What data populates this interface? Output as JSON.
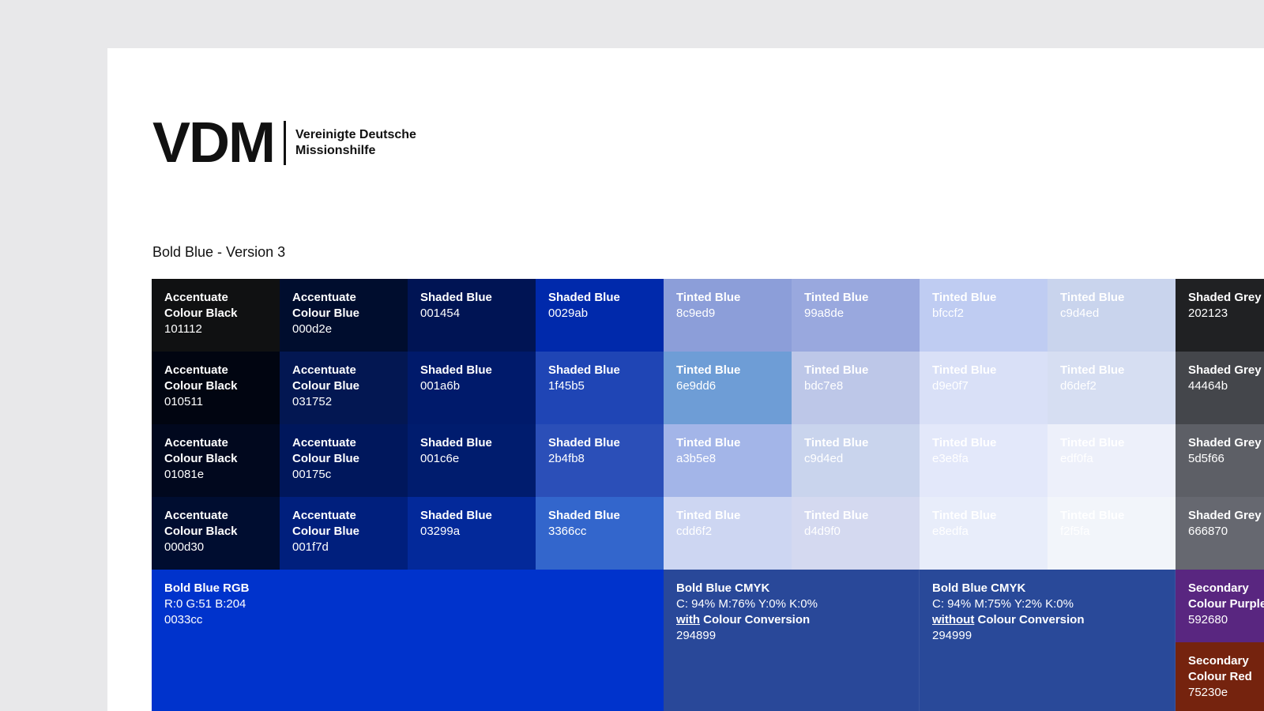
{
  "logo": {
    "mark": "VDM",
    "line1": "Vereinigte Deutsche",
    "line2": "Missionshilfe"
  },
  "title": "Bold Blue - Version 3",
  "rows": [
    [
      {
        "name": "Accentuate Colour Black",
        "code": "101112",
        "bg": "#101112",
        "fg": "#ffffff"
      },
      {
        "name": "Accentuate Colour Blue",
        "code": "000d2e",
        "bg": "#000d2e",
        "fg": "#ffffff"
      },
      {
        "name": "Shaded Blue",
        "code": "001454",
        "bg": "#001454",
        "fg": "#ffffff"
      },
      {
        "name": "Shaded Blue",
        "code": "0029ab",
        "bg": "#0029ab",
        "fg": "#ffffff"
      },
      {
        "name": "Tinted Blue",
        "code": "8c9ed9",
        "bg": "#8c9ed9",
        "fg": "#ffffff"
      },
      {
        "name": "Tinted Blue",
        "code": "99a8de",
        "bg": "#99a8de",
        "fg": "#ffffff"
      },
      {
        "name": "Tinted Blue",
        "code": "bfccf2",
        "bg": "#bfccf2",
        "fg": "#ffffff"
      },
      {
        "name": "Tinted Blue",
        "code": "c9d4ed",
        "bg": "#c9d4ed",
        "fg": "#ffffff"
      },
      {
        "name": "Shaded Grey",
        "code": "202123",
        "bg": "#202123",
        "fg": "#ffffff"
      }
    ],
    [
      {
        "name": "Accentuate Colour Black",
        "code": "010511",
        "bg": "#010511",
        "fg": "#ffffff"
      },
      {
        "name": "Accentuate Colour Blue",
        "code": "031752",
        "bg": "#031752",
        "fg": "#ffffff"
      },
      {
        "name": "Shaded Blue",
        "code": "001a6b",
        "bg": "#001a6b",
        "fg": "#ffffff"
      },
      {
        "name": "Shaded Blue",
        "code": "1f45b5",
        "bg": "#1f45b5",
        "fg": "#ffffff"
      },
      {
        "name": "Tinted Blue",
        "code": "6e9dd6",
        "bg": "#6e9dd6",
        "fg": "#ffffff"
      },
      {
        "name": "Tinted Blue",
        "code": "bdc7e8",
        "bg": "#bdc7e8",
        "fg": "#ffffff"
      },
      {
        "name": "Tinted Blue",
        "code": "d9e0f7",
        "bg": "#d9e0f7",
        "fg": "#ffffff"
      },
      {
        "name": "Tinted Blue",
        "code": "d6def2",
        "bg": "#d6def2",
        "fg": "#ffffff"
      },
      {
        "name": "Shaded Grey",
        "code": "44464b",
        "bg": "#44464b",
        "fg": "#ffffff"
      }
    ],
    [
      {
        "name": "Accentuate Colour Black",
        "code": "01081e",
        "bg": "#01081e",
        "fg": "#ffffff"
      },
      {
        "name": "Accentuate Colour Blue",
        "code": "00175c",
        "bg": "#00175c",
        "fg": "#ffffff"
      },
      {
        "name": "Shaded Blue",
        "code": "001c6e",
        "bg": "#001c6e",
        "fg": "#ffffff"
      },
      {
        "name": "Shaded Blue",
        "code": "2b4fb8",
        "bg": "#2b4fb8",
        "fg": "#ffffff"
      },
      {
        "name": "Tinted Blue",
        "code": "a3b5e8",
        "bg": "#a3b5e8",
        "fg": "#ffffff"
      },
      {
        "name": "Tinted Blue",
        "code": "c9d4ed",
        "bg": "#c9d4ed",
        "fg": "#ffffff"
      },
      {
        "name": "Tinted Blue",
        "code": "e3e8fa",
        "bg": "#e3e8fa",
        "fg": "#ffffff"
      },
      {
        "name": "Tinted Blue",
        "code": "edf0fa",
        "bg": "#edf0fa",
        "fg": "#ffffff"
      },
      {
        "name": "Shaded Grey",
        "code": "5d5f66",
        "bg": "#5d5f66",
        "fg": "#ffffff"
      }
    ],
    [
      {
        "name": "Accentuate Colour Black",
        "code": "000d30",
        "bg": "#000d30",
        "fg": "#ffffff"
      },
      {
        "name": "Accentuate Colour Blue",
        "code": "001f7d",
        "bg": "#001f7d",
        "fg": "#ffffff"
      },
      {
        "name": "Shaded Blue",
        "code": "03299a",
        "bg": "#03299a",
        "fg": "#ffffff"
      },
      {
        "name": "Shaded Blue",
        "code": "3366cc",
        "bg": "#3366cc",
        "fg": "#ffffff"
      },
      {
        "name": "Tinted Blue",
        "code": "cdd6f2",
        "bg": "#cdd6f2",
        "fg": "#ffffff"
      },
      {
        "name": "Tinted Blue",
        "code": "d4d9f0",
        "bg": "#d4d9f0",
        "fg": "#ffffff"
      },
      {
        "name": "Tinted Blue",
        "code": "e8edfa",
        "bg": "#e8edfa",
        "fg": "#ffffff"
      },
      {
        "name": "Tinted Blue",
        "code": "f2f5fa",
        "bg": "#f2f5fa",
        "fg": "#ffffff"
      },
      {
        "name": "Shaded Grey",
        "code": "666870",
        "bg": "#666870",
        "fg": "#ffffff"
      }
    ]
  ],
  "bottom": {
    "rgb": {
      "name": "Bold Blue RGB",
      "values": "R:0   G:51   B:204",
      "code": "0033cc",
      "bg": "#0033cc",
      "fg": "#ffffff"
    },
    "cmyk_with": {
      "name": "Bold Blue CMYK",
      "values": "C: 94%   M:76%   Y:0%   K:0%",
      "qualifier": "with",
      "conversion": " Colour Conversion",
      "code": "294899",
      "bg": "#294899",
      "fg": "#ffffff"
    },
    "cmyk_without": {
      "name": "Bold Blue CMYK",
      "values": "C: 94%   M:75%   Y:2%   K:0%",
      "qualifier": "without",
      "conversion": " Colour Conversion",
      "code": "294999",
      "bg": "#294999",
      "fg": "#ffffff"
    },
    "purple": {
      "name": "Secondary Colour Purple",
      "code": "592680",
      "bg": "#592680",
      "fg": "#ffffff"
    },
    "red": {
      "name": "Secondary Colour Red",
      "code": "75230e",
      "bg": "#75230e",
      "fg": "#ffffff"
    }
  }
}
